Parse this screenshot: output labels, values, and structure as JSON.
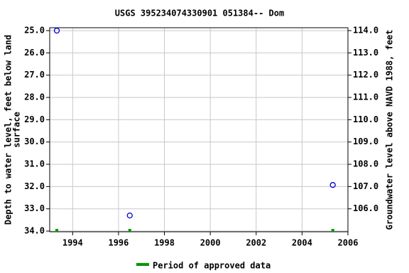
{
  "chart_data": {
    "type": "scatter",
    "title": "USGS 395234074330901 051384-- Dom",
    "y_label": [
      "Depth to water level, feet below land",
      "surface"
    ],
    "y2_label": "Groundwater level above NAVD 1988, feet",
    "xlim": [
      1993.0,
      2006.0
    ],
    "xticks": [
      1994,
      1996,
      1998,
      2000,
      2002,
      2004,
      2006
    ],
    "ylim": [
      34.03,
      24.87
    ],
    "yticks": [
      {
        "value": 25,
        "label": "25.0"
      },
      {
        "value": 26,
        "label": "26.0"
      },
      {
        "value": 27,
        "label": "27.0"
      },
      {
        "value": 28,
        "label": "28.0"
      },
      {
        "value": 29,
        "label": "29.0"
      },
      {
        "value": 30,
        "label": "30.0"
      },
      {
        "value": 31,
        "label": "31.0"
      },
      {
        "value": 32,
        "label": "32.0"
      },
      {
        "value": 33,
        "label": "33.0"
      },
      {
        "value": 34,
        "label": "34.0"
      }
    ],
    "y2lim": [
      104.97,
      114.13
    ],
    "y2ticks": [
      {
        "value": 106,
        "label": "106.0"
      },
      {
        "value": 107,
        "label": "107.0"
      },
      {
        "value": 108,
        "label": "108.0"
      },
      {
        "value": 109,
        "label": "109.0"
      },
      {
        "value": 110,
        "label": "110.0"
      },
      {
        "value": 111,
        "label": "111.0"
      },
      {
        "value": 112,
        "label": "112.0"
      },
      {
        "value": 113,
        "label": "113.0"
      },
      {
        "value": 114,
        "label": "114.0"
      }
    ],
    "grid": true,
    "series": [
      {
        "color": "#0000cc",
        "x": [
          1993.31,
          1996.49,
          2005.34
        ],
        "values": [
          25.0,
          33.3,
          31.93
        ]
      },
      {
        "name": "Period of approved data",
        "color": "#009900",
        "x": [
          1993.31,
          1996.49,
          2005.34
        ]
      }
    ]
  }
}
